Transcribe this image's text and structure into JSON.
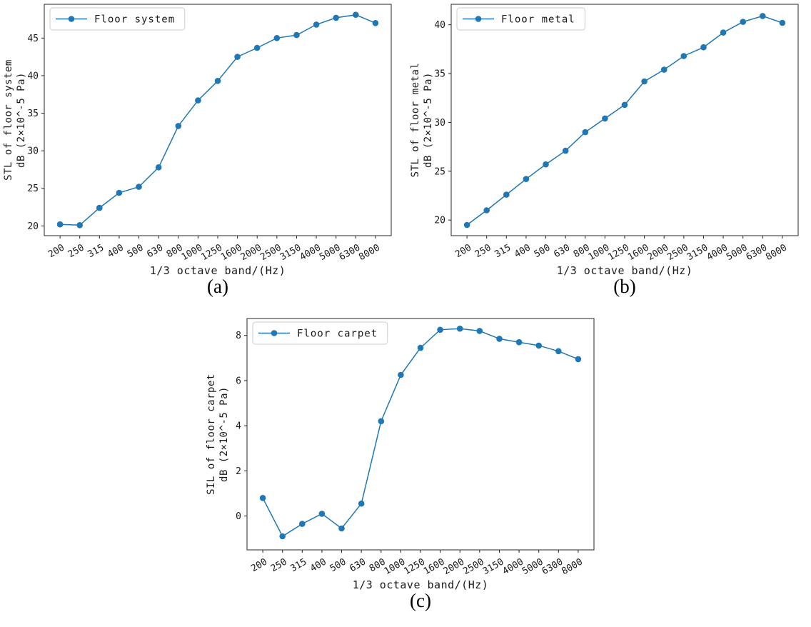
{
  "figure": {
    "background": "#ffffff",
    "panel_captions": [
      "(a)",
      "(b)",
      "(c)"
    ]
  },
  "chart_data": [
    {
      "type": "line",
      "panel": "a",
      "caption": "(a)",
      "legend": {
        "label": "Floor system",
        "position": "upper left"
      },
      "categories": [
        "200",
        "250",
        "315",
        "400",
        "500",
        "630",
        "800",
        "1000",
        "1250",
        "1600",
        "2000",
        "2500",
        "3150",
        "4000",
        "5000",
        "6300",
        "8000"
      ],
      "values": [
        20.2,
        20.1,
        22.4,
        24.4,
        25.2,
        27.8,
        33.3,
        36.7,
        39.3,
        42.5,
        43.7,
        45.0,
        45.4,
        46.8,
        47.7,
        48.1,
        47.0
      ],
      "xlabel": "1/3 octave band/(Hz)",
      "ylabel_lines": [
        "STL of floor system",
        "dB (2×10^-5 Pa)"
      ],
      "ylim": [
        18.7,
        49.5
      ],
      "yticks": [
        20,
        25,
        30,
        35,
        40,
        45
      ],
      "line_color": "#1f77b4",
      "marker": "circle",
      "grid": false,
      "x_tick_rotation_deg": 30
    },
    {
      "type": "line",
      "panel": "b",
      "caption": "(b)",
      "legend": {
        "label": "Floor metal",
        "position": "upper left"
      },
      "categories": [
        "200",
        "250",
        "315",
        "400",
        "500",
        "630",
        "800",
        "1000",
        "1250",
        "1600",
        "2000",
        "2500",
        "3150",
        "4000",
        "5000",
        "6300",
        "8000"
      ],
      "values": [
        19.5,
        21.0,
        22.6,
        24.2,
        25.7,
        27.1,
        29.0,
        30.4,
        31.8,
        34.2,
        35.4,
        36.8,
        37.7,
        39.2,
        40.3,
        40.9,
        40.2
      ],
      "xlabel": "1/3 octave band/(Hz)",
      "ylabel_lines": [
        "STL of floor metal",
        "dB (2×10^-5 Pa)"
      ],
      "ylim": [
        18.4,
        42.1
      ],
      "yticks": [
        20,
        25,
        30,
        35,
        40
      ],
      "line_color": "#1f77b4",
      "marker": "circle",
      "grid": false,
      "x_tick_rotation_deg": 30
    },
    {
      "type": "line",
      "panel": "c",
      "caption": "(c)",
      "legend": {
        "label": "Floor carpet",
        "position": "upper left"
      },
      "categories": [
        "200",
        "250",
        "315",
        "400",
        "500",
        "630",
        "800",
        "1000",
        "1250",
        "1600",
        "2000",
        "2500",
        "3150",
        "4000",
        "5000",
        "6300",
        "8000"
      ],
      "values": [
        0.8,
        -0.9,
        -0.35,
        0.1,
        -0.55,
        0.55,
        4.2,
        6.25,
        7.45,
        8.25,
        8.3,
        8.2,
        7.85,
        7.7,
        7.55,
        7.3,
        6.95
      ],
      "xlabel": "1/3 octave band/(Hz)",
      "ylabel_lines": [
        "SIL of floor carpet",
        "dB (2×10^-5 Pa)"
      ],
      "ylim": [
        -1.5,
        8.75
      ],
      "yticks": [
        0,
        2,
        4,
        6,
        8
      ],
      "line_color": "#1f77b4",
      "marker": "circle",
      "grid": false,
      "x_tick_rotation_deg": 30
    }
  ]
}
